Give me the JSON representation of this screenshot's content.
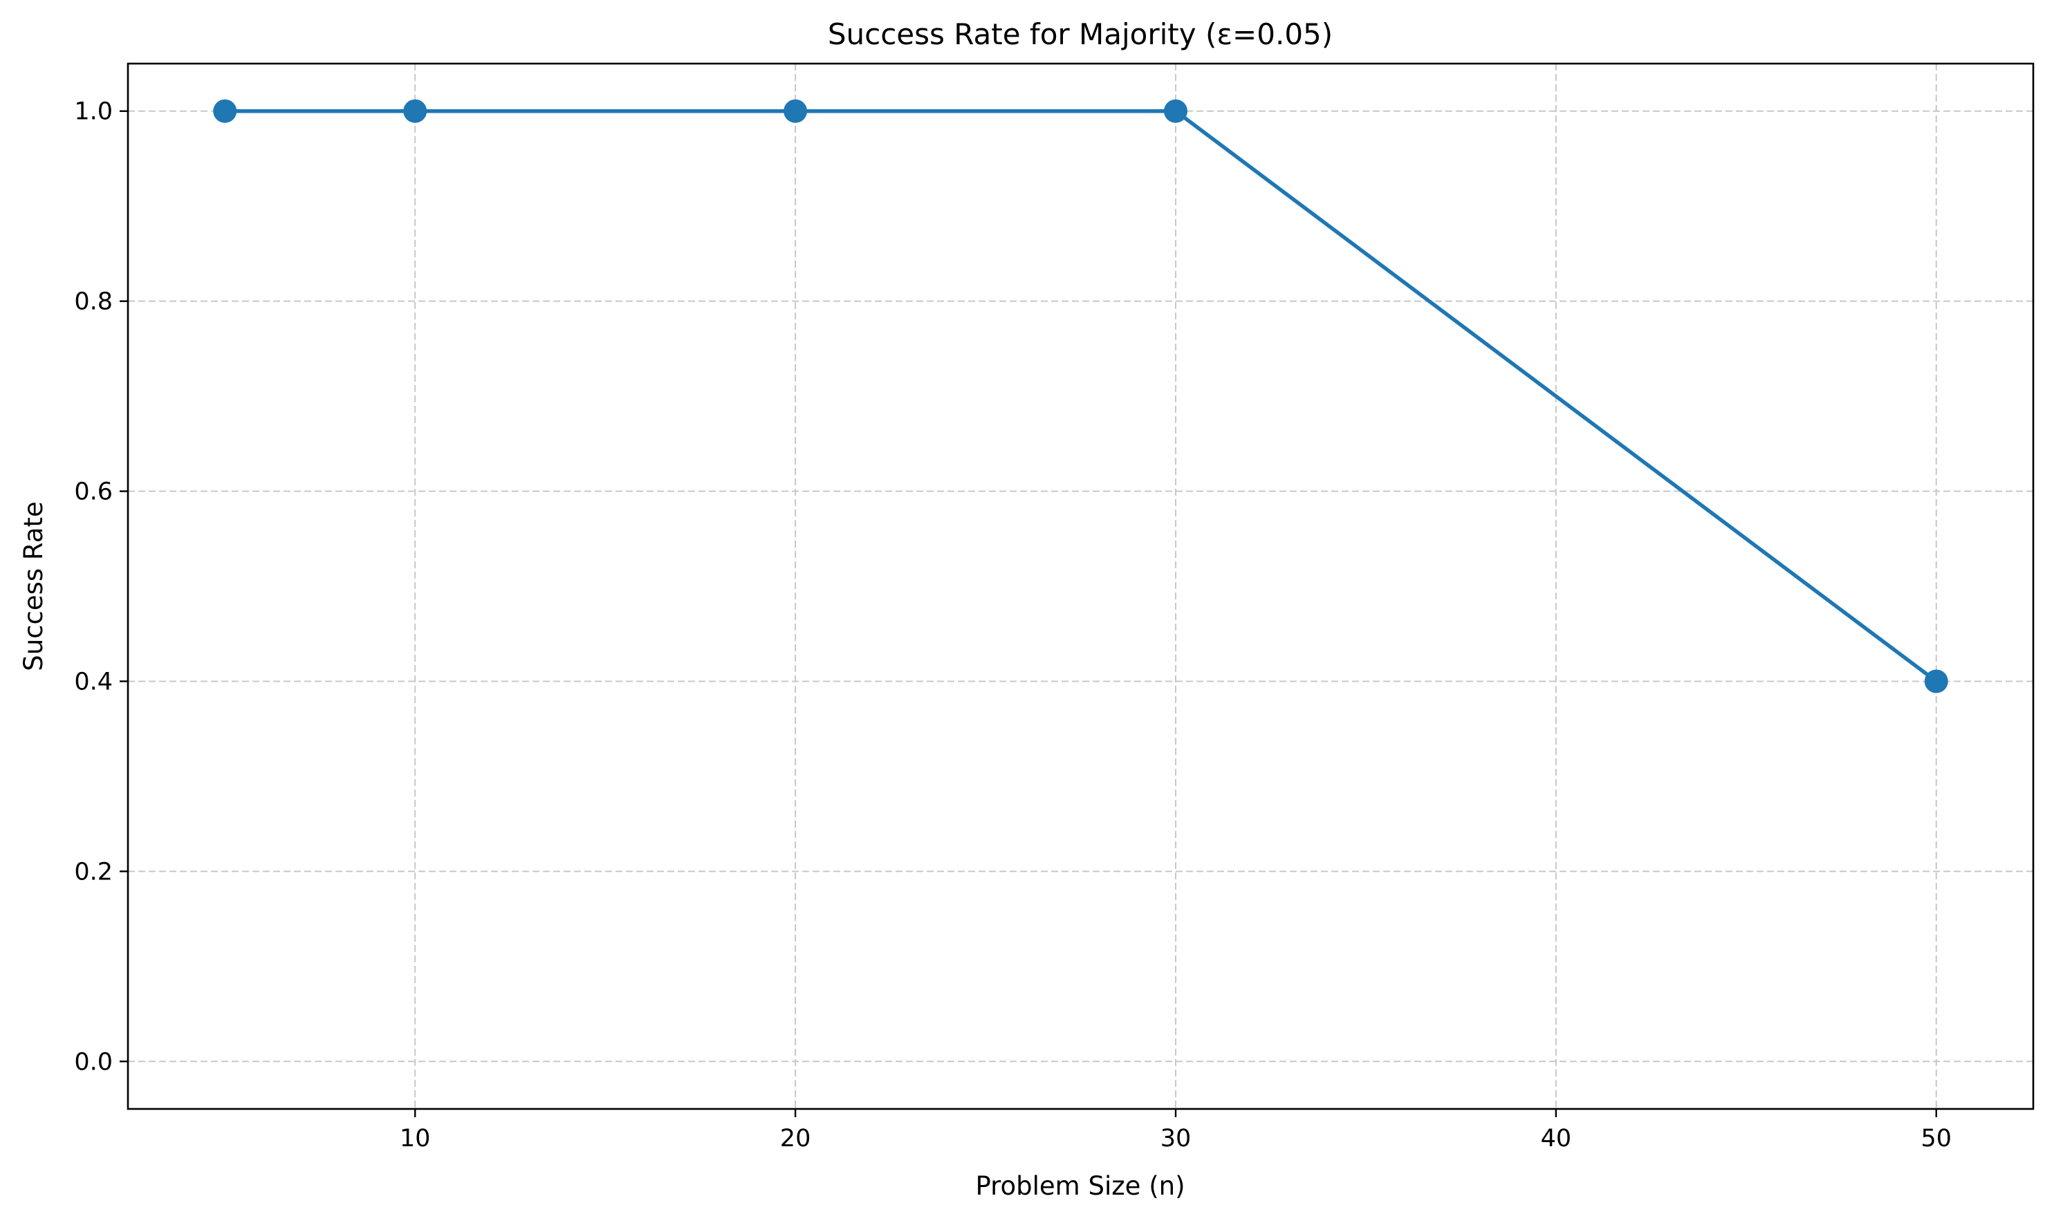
{
  "chart_data": {
    "type": "line",
    "title": "Success Rate for Majority (ε=0.05)",
    "xlabel": "Problem Size (n)",
    "ylabel": "Success Rate",
    "xlim": [
      2.45,
      52.55
    ],
    "ylim": [
      -0.05,
      1.05
    ],
    "xticks": [
      10,
      20,
      30,
      40,
      50
    ],
    "yticks": [
      0.0,
      0.2,
      0.4,
      0.6,
      0.8,
      1.0
    ],
    "xtick_labels": [
      "10",
      "20",
      "30",
      "40",
      "50"
    ],
    "ytick_labels": [
      "0.0",
      "0.2",
      "0.4",
      "0.6",
      "0.8",
      "1.0"
    ],
    "grid": true,
    "grid_style": "dashed",
    "series": [
      {
        "x": [
          5,
          10,
          20,
          30,
          50
        ],
        "y": [
          1.0,
          1.0,
          1.0,
          1.0,
          0.4
        ],
        "color": "#1f77b4",
        "marker": "circle"
      }
    ],
    "colors": {
      "line": "#1f77b4",
      "grid": "#c8c8c8",
      "axes": "#000000"
    }
  }
}
